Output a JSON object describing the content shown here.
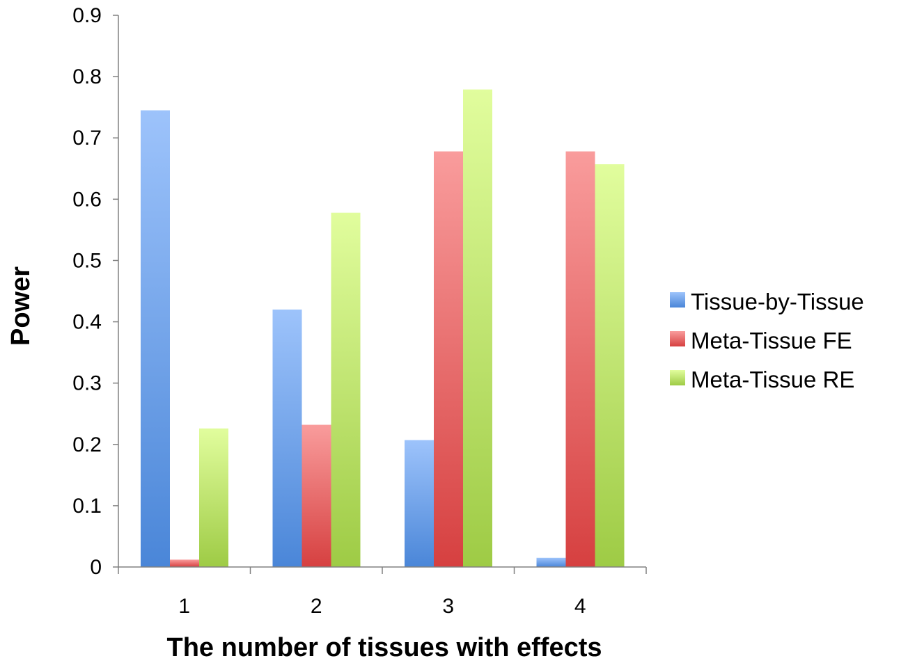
{
  "chart_data": {
    "type": "bar",
    "title": "",
    "xlabel": "The number of tissues with effects",
    "ylabel": "Power",
    "categories": [
      "1",
      "2",
      "3",
      "4"
    ],
    "ylim": [
      0,
      0.9
    ],
    "yticks": [
      "0",
      "0.1",
      "0.2",
      "0.3",
      "0.4",
      "0.5",
      "0.6",
      "0.7",
      "0.8",
      "0.9"
    ],
    "grid": false,
    "legend_position": "right",
    "series": [
      {
        "name": "Tissue-by-Tissue",
        "values": [
          0.745,
          0.42,
          0.207,
          0.015
        ],
        "color": "#4a86d8",
        "color_light": "#9dc3fb"
      },
      {
        "name": "Meta-Tissue FE",
        "values": [
          0.012,
          0.232,
          0.678,
          0.678
        ],
        "color": "#d64040",
        "color_light": "#f99c9c"
      },
      {
        "name": "Meta-Tissue RE",
        "values": [
          0.226,
          0.578,
          0.779,
          0.657
        ],
        "color": "#9ecb45",
        "color_light": "#e1fd9d"
      }
    ]
  }
}
